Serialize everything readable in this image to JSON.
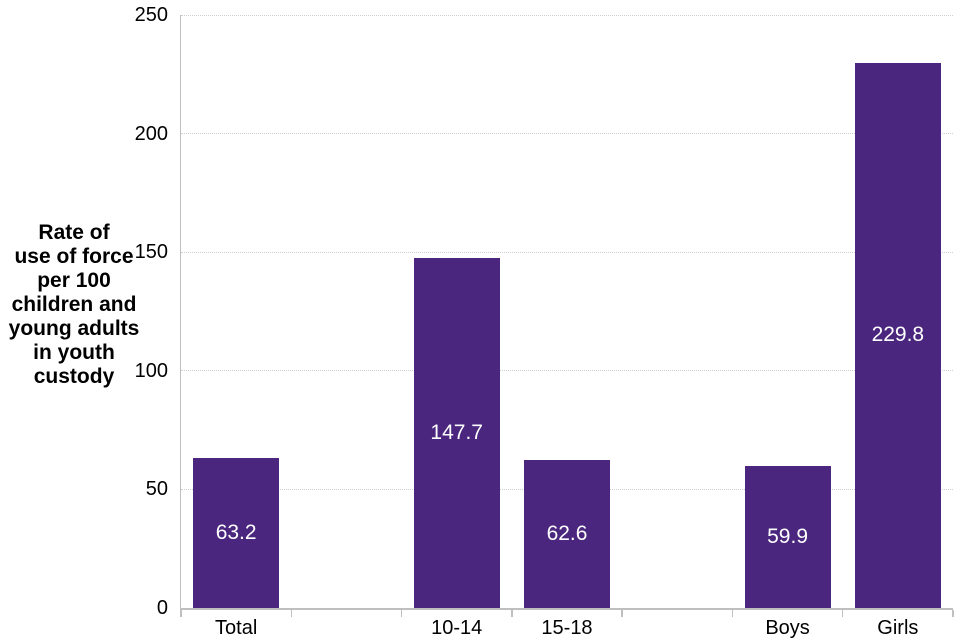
{
  "chart_data": {
    "type": "bar",
    "title": "",
    "categories": [
      "Total",
      "10-14",
      "15-18",
      "Boys",
      "Girls"
    ],
    "values": [
      63.2,
      147.7,
      62.6,
      59.9,
      229.8
    ],
    "slot_indices": [
      0,
      2,
      3,
      5,
      6
    ],
    "total_slots": 7,
    "ylabel": "Rate of use of force per 100 children and young adults in youth custody",
    "ylabel_lines": [
      "Rate of",
      "use of force",
      "per 100",
      "children and",
      "young adults",
      "in youth",
      "custody"
    ],
    "xlabel": "",
    "ylim": [
      0,
      250
    ],
    "yticks": [
      0,
      50,
      100,
      150,
      200,
      250
    ],
    "grid": "horizontal-dotted",
    "legend": "none",
    "value_labels": "inside-center",
    "bar_color": "#4A267E",
    "value_label_color": "#FFFFFF",
    "axis_color": "#BFBFBF",
    "gridline_color": "#CFCFCF",
    "text_color": "#000000"
  }
}
